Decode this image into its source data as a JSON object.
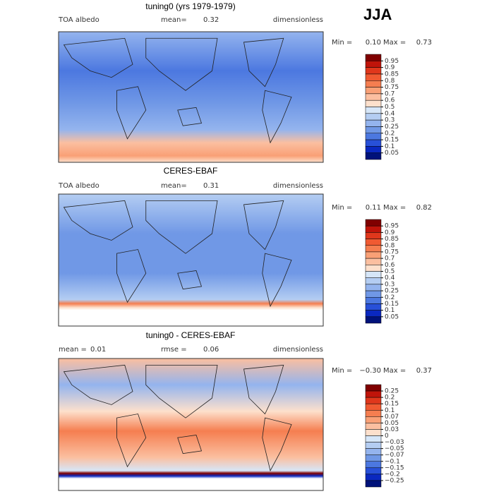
{
  "season": "JJA",
  "colors": [
    "#800000",
    "#c0140a",
    "#e0371c",
    "#f05a32",
    "#f57e50",
    "#f9a076",
    "#fbbfa0",
    "#fde0cc",
    "#d6e6f8",
    "#b4cdf2",
    "#94b4ee",
    "#7098e6",
    "#4c78e0",
    "#2850d8",
    "#0a28c0",
    "#00127a"
  ],
  "panels": [
    {
      "title": "tuning0 (yrs 1979-1979)",
      "header": [
        "TOA albedo",
        "mean=",
        0.32,
        "dimensionless"
      ],
      "minmax": [
        "Min =",
        {
          "value": 0.1,
          "label": "0.10"
        },
        "Max =",
        0.73
      ],
      "levels": [
        0.95,
        0.9,
        0.85,
        0.8,
        0.75,
        0.7,
        0.6,
        0.5,
        0.4,
        0.3,
        0.25,
        0.2,
        0.15,
        0.1,
        0.05
      ]
    },
    {
      "title": "CERES-EBAF",
      "header": [
        "TOA albedo",
        "mean=",
        0.31,
        "dimensionless"
      ],
      "minmax": [
        "Min =",
        0.11,
        "Max =",
        0.82
      ],
      "levels": [
        0.95,
        0.9,
        0.85,
        0.8,
        0.75,
        0.7,
        0.6,
        0.5,
        0.4,
        0.3,
        0.25,
        0.2,
        0.15,
        0.1,
        0.05
      ]
    },
    {
      "title": "tuning0 - CERES-EBAF",
      "header": [
        "mean =",
        0.01,
        "rmse =",
        0.06,
        "dimensionless"
      ],
      "minmax": [
        "Min =",
        {
          "value": -0.3,
          "label": "−0.30"
        },
        "Max =",
        0.37
      ],
      "levels": [
        0.25,
        0.2,
        0.15,
        0.1,
        0.07,
        0.05,
        0.03,
        0,
        {
          "value": -0.03,
          "label": "−0.03"
        },
        {
          "value": -0.05,
          "label": "−0.05"
        },
        {
          "value": -0.07,
          "label": "−0.07"
        },
        {
          "value": -0.1,
          "label": "−0.1"
        },
        {
          "value": -0.15,
          "label": "−0.15"
        },
        {
          "value": -0.2,
          "label": "−0.2"
        },
        {
          "value": -0.25,
          "label": "−0.25"
        }
      ]
    }
  ]
}
